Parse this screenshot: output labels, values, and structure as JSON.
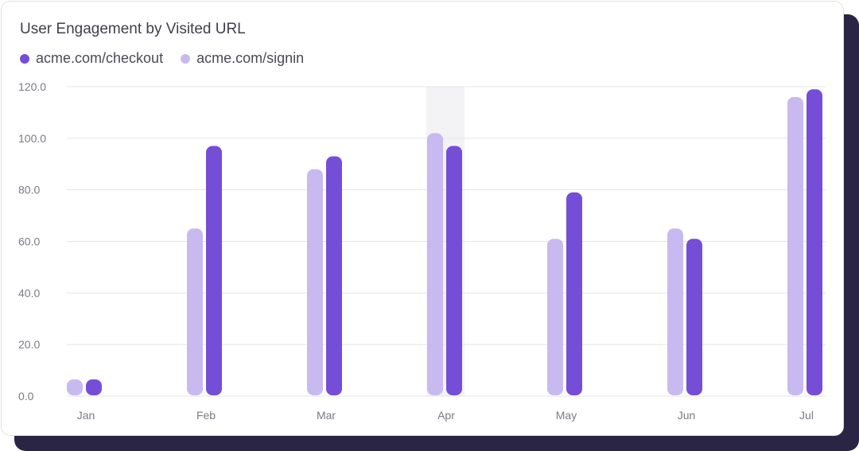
{
  "chart_data": {
    "type": "bar",
    "title": "User Engagement by Visited URL",
    "categories": [
      "Jan",
      "Feb",
      "Mar",
      "Apr",
      "May",
      "Jun",
      "Jul"
    ],
    "series": [
      {
        "name": "acme.com/signin",
        "color": "#c8baf0",
        "values": [
          6,
          65,
          88,
          102,
          61,
          65,
          116
        ]
      },
      {
        "name": "acme.com/checkout",
        "color": "#744ed6",
        "values": [
          6,
          97,
          93,
          97,
          79,
          61,
          119
        ]
      }
    ],
    "legend": [
      {
        "name": "acme.com/checkout",
        "color": "#744ed6"
      },
      {
        "name": "acme.com/signin",
        "color": "#c8baf0"
      }
    ],
    "yticks": [
      "0.0",
      "20.0",
      "40.0",
      "60.0",
      "80.0",
      "100.0",
      "120.0"
    ],
    "ylim": [
      0,
      120
    ],
    "grid": true,
    "legend_position": "top-left",
    "highlighted_category": "Apr",
    "xlabel": "",
    "ylabel": ""
  }
}
